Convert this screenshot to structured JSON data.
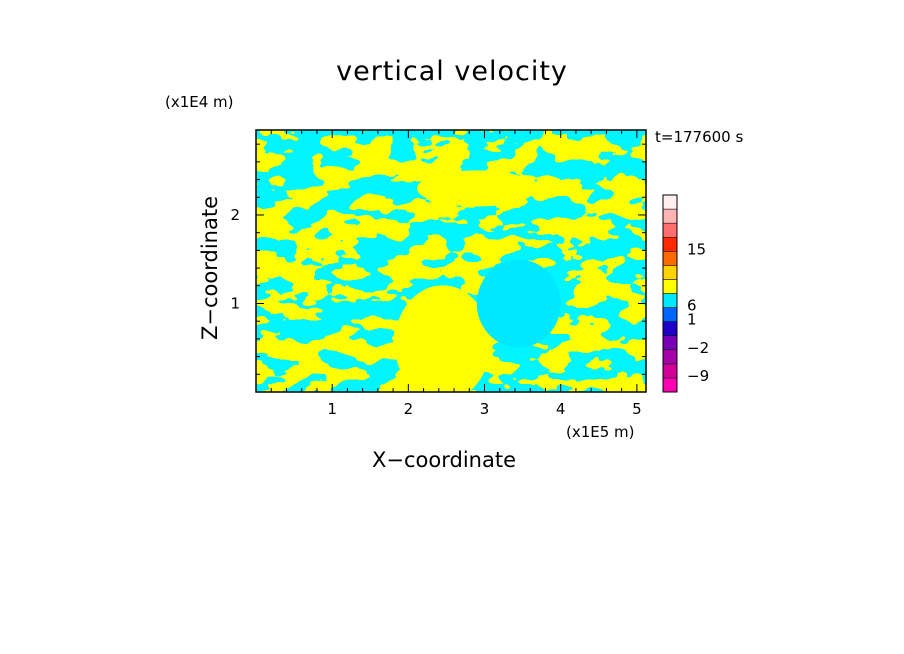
{
  "chart_data": {
    "type": "heatmap",
    "title": "vertical velocity",
    "xlabel": "X−coordinate",
    "ylabel": "Z−coordinate",
    "x_unit": "(x1E5 m)",
    "y_unit": "(x1E4 m)",
    "time_label": "t=177600 s",
    "xlim": [
      0,
      5.12
    ],
    "ylim": [
      0,
      2.96
    ],
    "x_ticks": [
      "1",
      "2",
      "3",
      "4",
      "5"
    ],
    "y_ticks": [
      "1",
      "2"
    ],
    "field_colors": {
      "positive": "#ffff00",
      "negative": "#00e8ff"
    },
    "colorbar": {
      "tick_labels": [
        "15",
        "6",
        "1",
        "−2",
        "−9"
      ],
      "colors": [
        "#ff00b4",
        "#d20096",
        "#a500aa",
        "#7800b4",
        "#1e00c8",
        "#0064ff",
        "#00e8ff",
        "#ffff00",
        "#ffd200",
        "#ff6a00",
        "#ff2800",
        "#ff6e6e",
        "#ffb4b4",
        "#ffeeee"
      ]
    }
  }
}
